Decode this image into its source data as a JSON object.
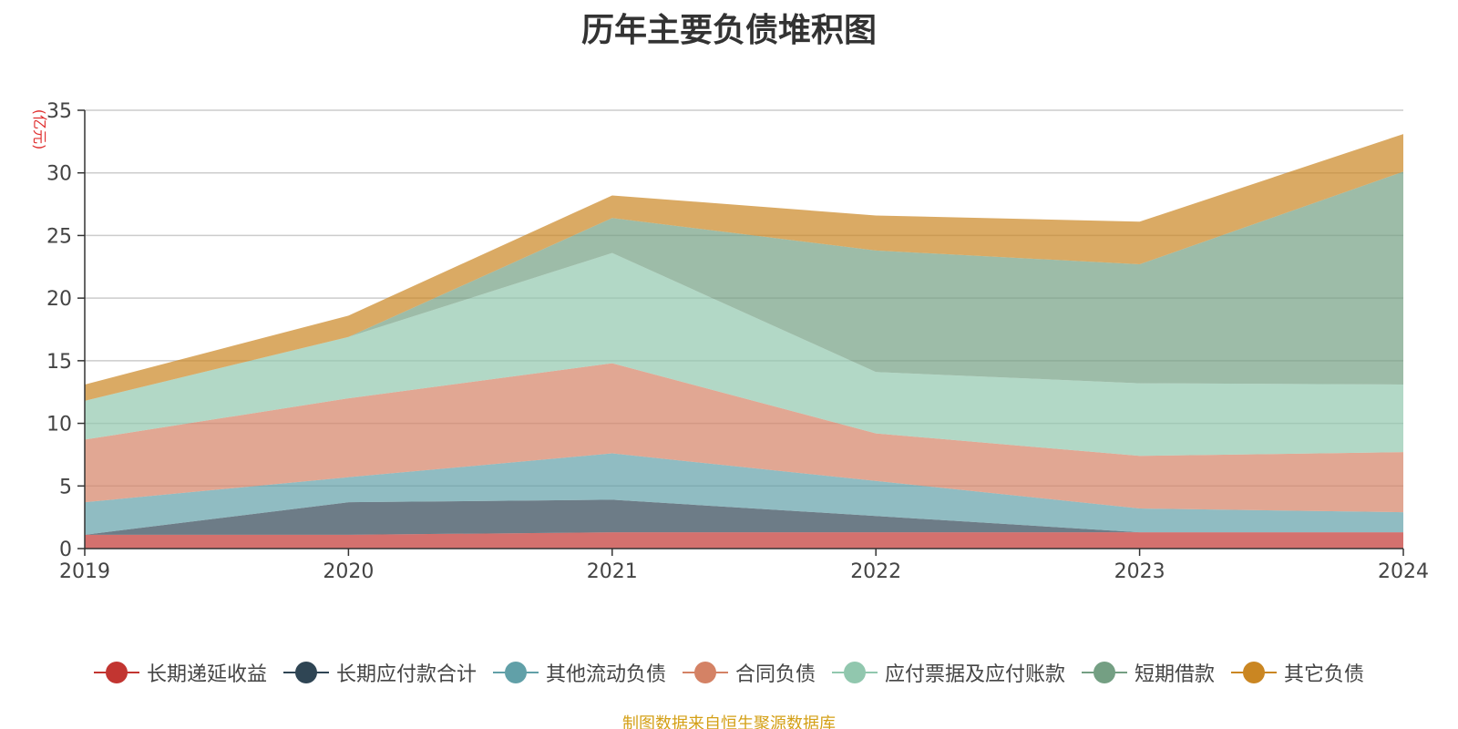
{
  "title": "历年主要负债堆积图",
  "unit": "(亿元)",
  "source": "制图数据来自恒生聚源数据库",
  "chart_data": {
    "type": "area",
    "stacked": true,
    "title": "历年主要负债堆积图",
    "ylabel": "(亿元)",
    "x": [
      "2019",
      "2020",
      "2021",
      "2022",
      "2023",
      "2024"
    ],
    "ylim": [
      0,
      35
    ],
    "yticks": [
      0,
      5,
      10,
      15,
      20,
      25,
      30,
      35
    ],
    "grid": true,
    "legend_position": "bottom",
    "series": [
      {
        "name": "长期递延收益",
        "color": "#c23531",
        "values": [
          1.1,
          1.1,
          1.3,
          1.3,
          1.3,
          1.3
        ]
      },
      {
        "name": "长期应付款合计",
        "color": "#2f4554",
        "values": [
          0.0,
          2.6,
          2.6,
          1.3,
          0.0,
          0.0
        ]
      },
      {
        "name": "其他流动负债",
        "color": "#61a0a8",
        "values": [
          2.6,
          2.0,
          3.7,
          2.8,
          1.9,
          1.6
        ]
      },
      {
        "name": "合同负债",
        "color": "#d48265",
        "values": [
          5.0,
          6.3,
          7.2,
          3.8,
          4.2,
          4.8
        ]
      },
      {
        "name": "应付票据及应付账款",
        "color": "#91c7ae",
        "values": [
          3.1,
          4.9,
          8.8,
          4.9,
          5.8,
          5.4
        ]
      },
      {
        "name": "短期借款",
        "color": "#749f83",
        "values": [
          0.0,
          0.0,
          2.8,
          9.7,
          9.5,
          17.0
        ]
      },
      {
        "name": "其它负债",
        "color": "#ca8622",
        "values": [
          1.3,
          1.7,
          1.8,
          2.8,
          3.4,
          3.0
        ]
      }
    ]
  }
}
